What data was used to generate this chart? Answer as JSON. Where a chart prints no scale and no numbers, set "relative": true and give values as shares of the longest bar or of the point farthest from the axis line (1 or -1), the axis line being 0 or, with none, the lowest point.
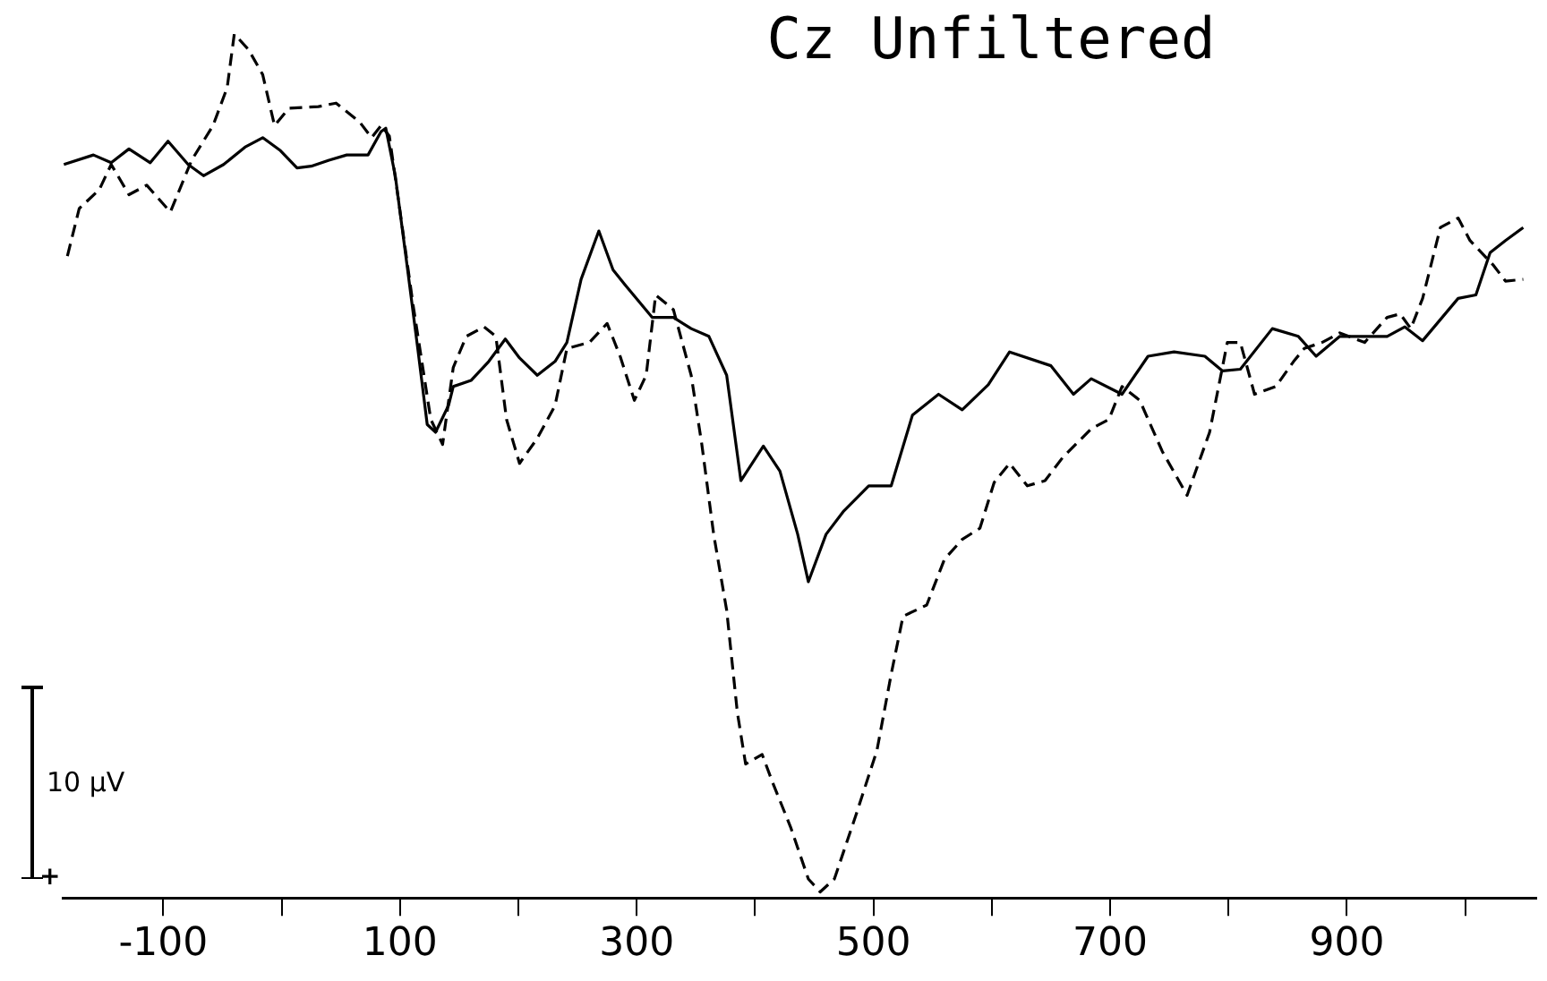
{
  "chart_data": {
    "type": "line",
    "title": "Cz Unfiltered",
    "relative": true,
    "xlim": [
      -185,
      1060
    ],
    "xticks": [
      -100,
      {
        "value": 0,
        "label": null
      },
      100,
      {
        "value": 200,
        "label": null
      },
      300,
      {
        "value": 400,
        "label": null
      },
      500,
      {
        "value": 600,
        "label": null
      },
      700,
      {
        "value": 800,
        "label": null
      },
      900,
      {
        "value": 1000,
        "label": null
      }
    ],
    "annotations": [
      "10 µV",
      "+"
    ],
    "series": [
      {
        "color": "#000000",
        "line_style": "solid",
        "x": [
          -184,
          -159,
          -144,
          -129,
          -111,
          -96,
          -79,
          -66,
          -49,
          -31,
          -16,
          -1,
          13,
          25,
          40,
          55,
          73,
          84,
          88,
          96,
          106,
          115,
          123,
          130,
          141,
          145,
          160,
          175,
          189,
          201,
          216,
          231,
          241,
          253,
          268,
          280,
          290,
          313,
          331,
          346,
          361,
          376,
          388,
          407,
          421,
          436,
          445,
          460,
          475,
          496,
          515,
          533,
          555,
          575,
          597,
          615,
          650,
          669,
          684,
          710,
          732,
          754,
          780,
          795,
          810,
          837,
          859,
          874,
          894,
          912,
          934,
          949,
          964,
          994,
          1009,
          1021,
          1034,
          1049
        ],
        "values": [
          0.849,
          0.86,
          0.851,
          0.867,
          0.851,
          0.876,
          0.849,
          0.836,
          0.849,
          0.869,
          0.88,
          0.865,
          0.845,
          0.847,
          0.854,
          0.86,
          0.86,
          0.887,
          0.891,
          0.836,
          0.732,
          0.636,
          0.548,
          0.539,
          0.57,
          0.592,
          0.599,
          0.621,
          0.647,
          0.625,
          0.605,
          0.621,
          0.643,
          0.716,
          0.772,
          0.727,
          0.71,
          0.672,
          0.672,
          0.659,
          0.65,
          0.605,
          0.483,
          0.523,
          0.494,
          0.421,
          0.366,
          0.421,
          0.448,
          0.477,
          0.477,
          0.559,
          0.583,
          0.565,
          0.594,
          0.632,
          0.616,
          0.583,
          0.601,
          0.583,
          0.627,
          0.632,
          0.627,
          0.61,
          0.612,
          0.659,
          0.65,
          0.627,
          0.65,
          0.65,
          0.65,
          0.661,
          0.645,
          0.694,
          0.698,
          0.747,
          0.761,
          0.776
        ]
      },
      {
        "color": "#000000",
        "line_style": "dashed",
        "x": [
          -181,
          -171,
          -154,
          -144,
          -129,
          -114,
          -94,
          -76,
          -58,
          -46,
          -40,
          -28,
          -16,
          -6,
          6,
          31,
          46,
          66,
          76,
          84,
          91,
          99,
          111,
          126,
          136,
          145,
          156,
          171,
          181,
          190,
          201,
          216,
          231,
          241,
          260,
          275,
          286,
          298,
          308,
          316,
          331,
          346,
          355,
          365,
          376,
          385,
          392,
          406,
          415,
          430,
          445,
          455,
          467,
          485,
          503,
          515,
          525,
          545,
          560,
          575,
          590,
          602,
          615,
          630,
          645,
          660,
          684,
          699,
          710,
          725,
          744,
          765,
          784,
          799,
          810,
          822,
          840,
          855,
          864,
          879,
          894,
          915,
          934,
          945,
          954,
          964,
          979,
          994,
          1004,
          1024,
          1034,
          1049
        ],
        "values": [
          0.743,
          0.798,
          0.82,
          0.849,
          0.814,
          0.825,
          0.794,
          0.854,
          0.894,
          0.938,
          1,
          0.982,
          0.953,
          0.894,
          0.914,
          0.916,
          0.92,
          0.898,
          0.88,
          0.894,
          0.882,
          0.805,
          0.687,
          0.554,
          0.525,
          0.614,
          0.65,
          0.661,
          0.65,
          0.554,
          0.503,
          0.532,
          0.57,
          0.636,
          0.643,
          0.665,
          0.627,
          0.576,
          0.605,
          0.698,
          0.681,
          0.605,
          0.525,
          0.421,
          0.333,
          0.215,
          0.155,
          0.166,
          0.133,
          0.082,
          0.022,
          0.007,
          0.022,
          0.095,
          0.171,
          0.259,
          0.326,
          0.339,
          0.392,
          0.415,
          0.428,
          0.481,
          0.503,
          0.477,
          0.483,
          0.51,
          0.543,
          0.554,
          0.592,
          0.576,
          0.517,
          0.466,
          0.539,
          0.643,
          0.643,
          0.583,
          0.592,
          0.621,
          0.636,
          0.643,
          0.654,
          0.643,
          0.672,
          0.676,
          0.659,
          0.694,
          0.776,
          0.787,
          0.761,
          0.732,
          0.714,
          0.716
        ]
      }
    ]
  }
}
